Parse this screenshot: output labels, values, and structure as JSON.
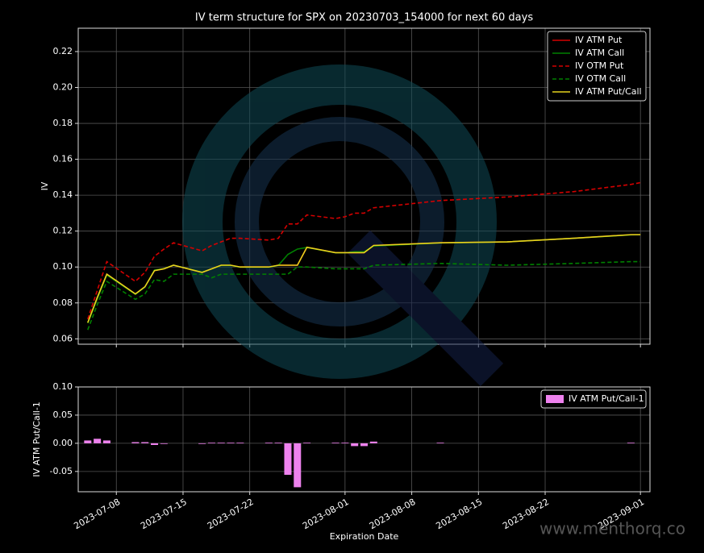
{
  "chart_data": [
    {
      "type": "line",
      "title": "IV term structure for SPX on 20230703_154000 for next 60 days",
      "ylabel": "IV",
      "x": [
        "2023-07-05",
        "2023-07-06",
        "2023-07-07",
        "2023-07-10",
        "2023-07-11",
        "2023-07-12",
        "2023-07-13",
        "2023-07-14",
        "2023-07-17",
        "2023-07-18",
        "2023-07-19",
        "2023-07-20",
        "2023-07-21",
        "2023-07-24",
        "2023-07-25",
        "2023-07-26",
        "2023-07-27",
        "2023-07-28",
        "2023-07-31",
        "2023-08-01",
        "2023-08-02",
        "2023-08-03",
        "2023-08-04",
        "2023-08-11",
        "2023-08-18",
        "2023-08-25",
        "2023-08-31",
        "2023-09-01"
      ],
      "series": [
        {
          "name": "IV ATM Put",
          "color": "#d40000",
          "style": "solid",
          "values": [
            0.069,
            0.083,
            0.096,
            0.085,
            0.089,
            0.098,
            0.099,
            0.101,
            0.097,
            0.099,
            0.101,
            0.101,
            0.1,
            0.1,
            0.101,
            0.101,
            0.101,
            0.111,
            0.108,
            0.108,
            0.108,
            0.108,
            0.112,
            0.1135,
            0.114,
            0.116,
            0.118,
            0.118
          ]
        },
        {
          "name": "IV ATM Call",
          "color": "#008000",
          "style": "solid",
          "values": [
            0.0687,
            0.0823,
            0.0955,
            0.0848,
            0.0888,
            0.0983,
            0.0991,
            0.101,
            0.0971,
            0.0989,
            0.1009,
            0.1009,
            0.0999,
            0.0999,
            0.1009,
            0.107,
            0.11,
            0.1109,
            0.1079,
            0.1079,
            0.1085,
            0.1085,
            0.1117,
            0.1134,
            0.114,
            0.116,
            0.1179,
            0.118
          ]
        },
        {
          "name": "IV OTM Put",
          "color": "#d40000",
          "style": "dashed",
          "values": [
            0.071,
            0.087,
            0.103,
            0.092,
            0.097,
            0.106,
            0.11,
            0.1135,
            0.109,
            0.112,
            0.114,
            0.116,
            0.116,
            0.115,
            0.116,
            0.124,
            0.124,
            0.129,
            0.127,
            0.128,
            0.13,
            0.13,
            0.133,
            0.137,
            0.139,
            0.142,
            0.146,
            0.147
          ]
        },
        {
          "name": "IV OTM Call",
          "color": "#008000",
          "style": "dashed",
          "values": [
            0.065,
            0.079,
            0.092,
            0.082,
            0.085,
            0.093,
            0.092,
            0.096,
            0.096,
            0.094,
            0.096,
            0.096,
            0.096,
            0.096,
            0.096,
            0.096,
            0.1,
            0.1,
            0.099,
            0.099,
            0.099,
            0.099,
            0.101,
            0.102,
            0.101,
            0.102,
            0.103,
            0.103
          ]
        },
        {
          "name": "IV ATM Put/Call",
          "color": "#e6d21e",
          "style": "solid",
          "values": [
            0.069,
            0.083,
            0.096,
            0.085,
            0.089,
            0.098,
            0.099,
            0.101,
            0.097,
            0.099,
            0.101,
            0.101,
            0.1,
            0.1,
            0.101,
            0.101,
            0.101,
            0.111,
            0.108,
            0.108,
            0.108,
            0.108,
            0.112,
            0.1135,
            0.114,
            0.116,
            0.118,
            0.118
          ]
        }
      ],
      "xlim": [
        "2023-07-04",
        "2023-09-02"
      ],
      "xticks": [
        "2023-07-08",
        "2023-07-15",
        "2023-07-22",
        "2023-08-01",
        "2023-08-08",
        "2023-08-15",
        "2023-08-22",
        "2023-09-01"
      ],
      "ylim": [
        0.057,
        0.233
      ],
      "yticks": [
        0.06,
        0.08,
        {
          "value": 0.1,
          "label": "0.10"
        },
        0.12,
        0.14,
        0.16,
        0.18,
        {
          "value": 0.2,
          "label": "0.20"
        },
        0.22
      ],
      "grid": true,
      "legend": "upper right"
    },
    {
      "type": "bar",
      "ylabel": "IV ATM Put/Call-1",
      "xlabel": "Expiration Date",
      "watermark": "www.menthorq.co",
      "x": [
        "2023-07-05",
        "2023-07-06",
        "2023-07-07",
        "2023-07-10",
        "2023-07-11",
        "2023-07-12",
        "2023-07-13",
        "2023-07-14",
        "2023-07-17",
        "2023-07-18",
        "2023-07-19",
        "2023-07-20",
        "2023-07-21",
        "2023-07-24",
        "2023-07-25",
        "2023-07-26",
        "2023-07-27",
        "2023-07-28",
        "2023-07-31",
        "2023-08-01",
        "2023-08-02",
        "2023-08-03",
        "2023-08-04",
        "2023-08-11",
        "2023-08-18",
        "2023-08-25",
        "2023-08-31",
        "2023-09-01"
      ],
      "series": [
        {
          "name": "IV ATM Put/Call-1",
          "color": "#ee82ee",
          "values": [
            0.005,
            0.008,
            0.005,
            0.002,
            0.002,
            -0.003,
            -0.001,
            null,
            -0.001,
            0.001,
            0.001,
            0.001,
            0.001,
            0.001,
            0.001,
            -0.056,
            -0.078,
            0.001,
            0.001,
            0.001,
            -0.005,
            -0.005,
            0.003,
            0.001,
            null,
            null,
            0.001,
            null
          ]
        }
      ],
      "xlim": [
        "2023-07-04",
        "2023-09-02"
      ],
      "xticks": [
        "2023-07-08",
        "2023-07-15",
        "2023-07-22",
        "2023-08-01",
        "2023-08-08",
        "2023-08-15",
        "2023-08-22",
        "2023-09-01"
      ],
      "ylim": [
        -0.086,
        0.1
      ],
      "yticks": [
        {
          "value": -0.05,
          "label": "-0.05"
        },
        {
          "value": 0,
          "label": "0.00"
        },
        {
          "value": 0.05,
          "label": "0.05"
        },
        {
          "value": 0.1,
          "label": "0.10"
        }
      ],
      "grid": true,
      "legend": "upper right"
    }
  ]
}
